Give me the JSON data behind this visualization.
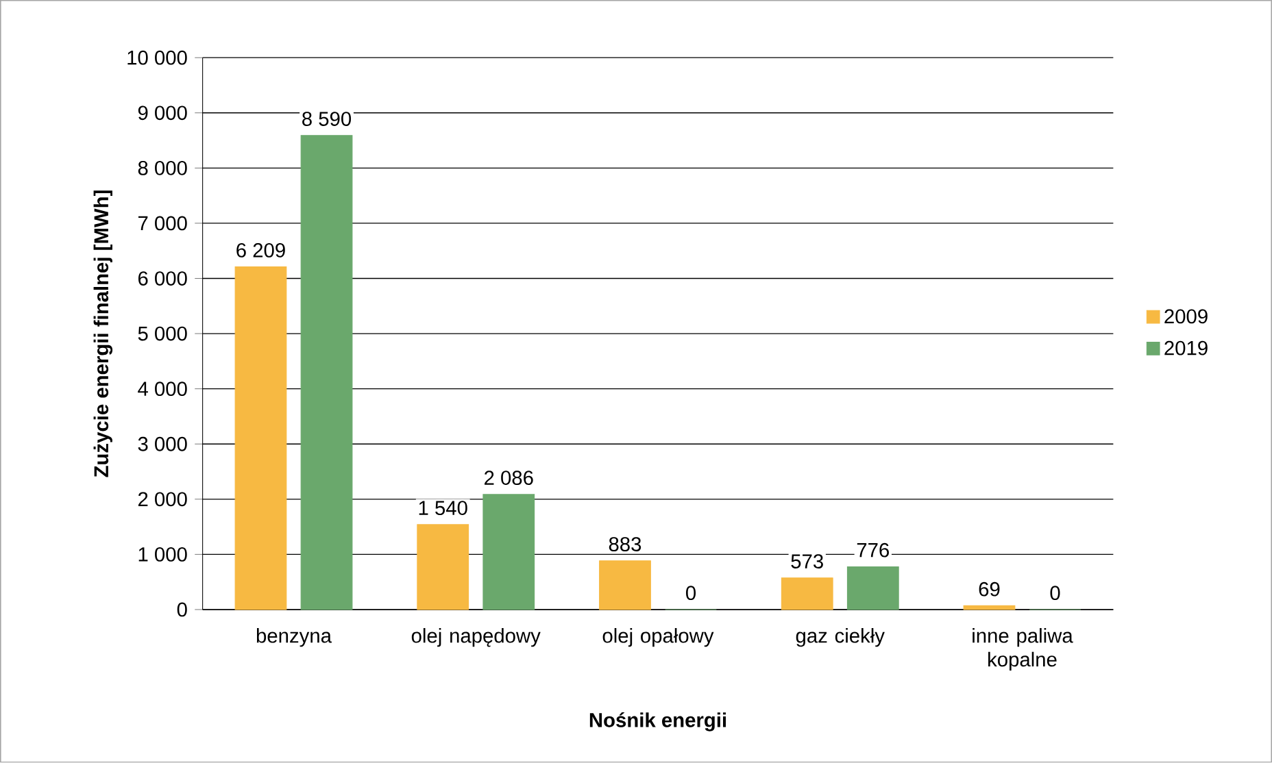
{
  "chart_data": {
    "type": "bar",
    "xlabel": "Nośnik energii",
    "ylabel": "Zużycie energii finalnej [MWh]",
    "categories": [
      "benzyna",
      "olej napędowy",
      "olej opałowy",
      "gaz ciekły",
      "inne paliwa kopalne"
    ],
    "series": [
      {
        "name": "2009",
        "color": "#f7b942",
        "values": [
          6209,
          1540,
          883,
          573,
          69
        ],
        "value_labels": [
          "6 209",
          "1 540",
          "883",
          "573",
          "69"
        ]
      },
      {
        "name": "2019",
        "color": "#6aa86c",
        "values": [
          8590,
          2086,
          0,
          776,
          0
        ],
        "value_labels": [
          "8 590",
          "2 086",
          "0",
          "776",
          "0"
        ]
      }
    ],
    "ylim": [
      0,
      10000
    ],
    "yticks": [
      0,
      {
        "value": 1000,
        "label": "1 000"
      },
      {
        "value": 2000,
        "label": "2 000"
      },
      {
        "value": 3000,
        "label": "3 000"
      },
      {
        "value": 4000,
        "label": "4 000"
      },
      {
        "value": 5000,
        "label": "5 000"
      },
      {
        "value": 6000,
        "label": "6 000"
      },
      {
        "value": 7000,
        "label": "7 000"
      },
      {
        "value": 8000,
        "label": "8 000"
      },
      {
        "value": 9000,
        "label": "9 000"
      },
      {
        "value": 10000,
        "label": "10 000"
      }
    ],
    "grid": "y",
    "legend": "right"
  }
}
